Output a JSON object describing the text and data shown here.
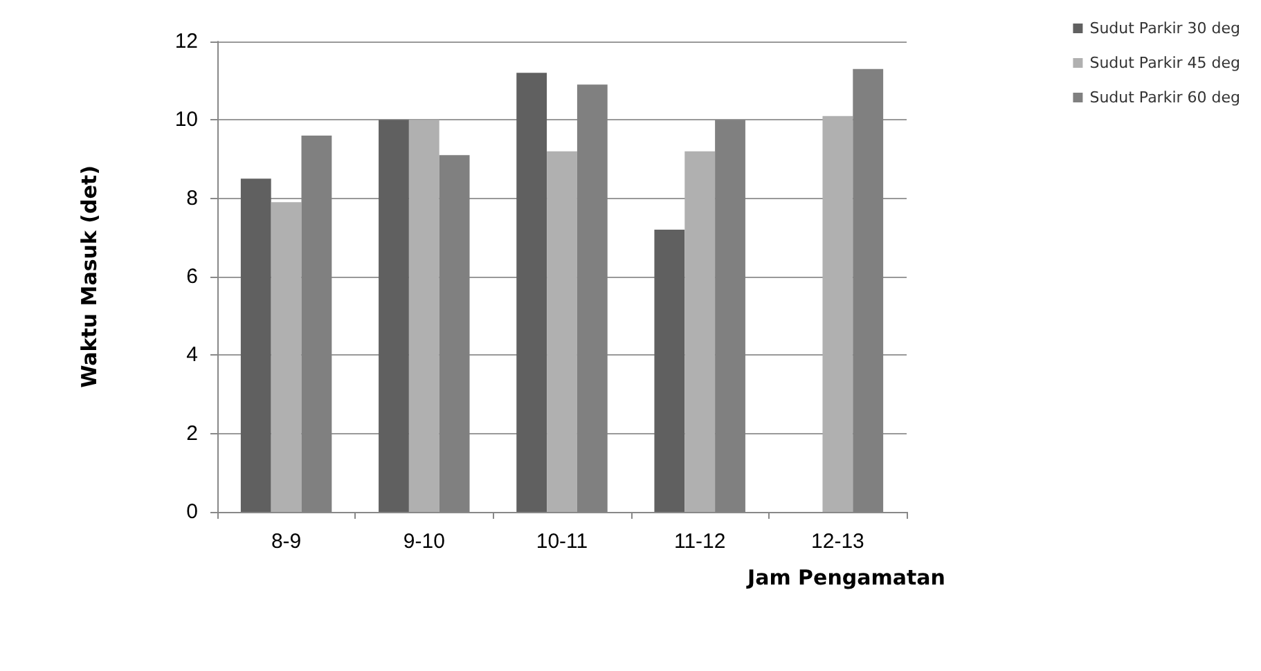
{
  "chart_data": {
    "type": "bar",
    "xlabel": "Jam Pengamatan",
    "ylabel": "Waktu Masuk (det)",
    "categories": [
      "8-9",
      "9-10",
      "10-11",
      "11-12",
      "12-13"
    ],
    "series": [
      {
        "name": "Sudut Parkir 30 deg",
        "color": "#606060",
        "values": [
          8.5,
          10,
          11.2,
          7.2,
          null
        ]
      },
      {
        "name": "Sudut Parkir 45 deg",
        "color": "#b0b0b0",
        "values": [
          7.9,
          10,
          9.2,
          9.2,
          10.1
        ]
      },
      {
        "name": "Sudut Parkir 60 deg",
        "color": "#808080",
        "values": [
          9.6,
          9.1,
          10.9,
          10,
          11.3
        ]
      }
    ],
    "ylim": [
      0,
      12
    ],
    "yticks": [
      0,
      2,
      4,
      6,
      8,
      10,
      12
    ],
    "grid": "y",
    "legend": "top right"
  }
}
